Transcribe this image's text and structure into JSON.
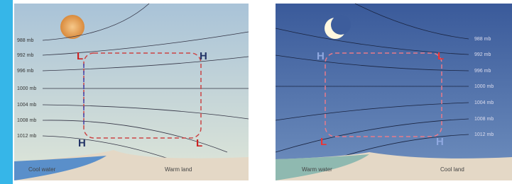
{
  "left_panel": {
    "isobars": [
      "988 mb",
      "992 mb",
      "996 mb",
      "1000 mb",
      "1004 mb",
      "1008 mb",
      "1012 mb"
    ],
    "pressure_marks": [
      "L",
      "H",
      "H",
      "L"
    ],
    "surface": [
      "Cool water",
      "Warm land"
    ]
  },
  "right_panel": {
    "isobars": [
      "988 mb",
      "992 mb",
      "996 mb",
      "1000 mb",
      "1004 mb",
      "1008 mb",
      "1012 mb"
    ],
    "pressure_marks": [
      "H",
      "L",
      "L",
      "H"
    ],
    "surface": [
      "Warm water",
      "Cool land"
    ]
  }
}
